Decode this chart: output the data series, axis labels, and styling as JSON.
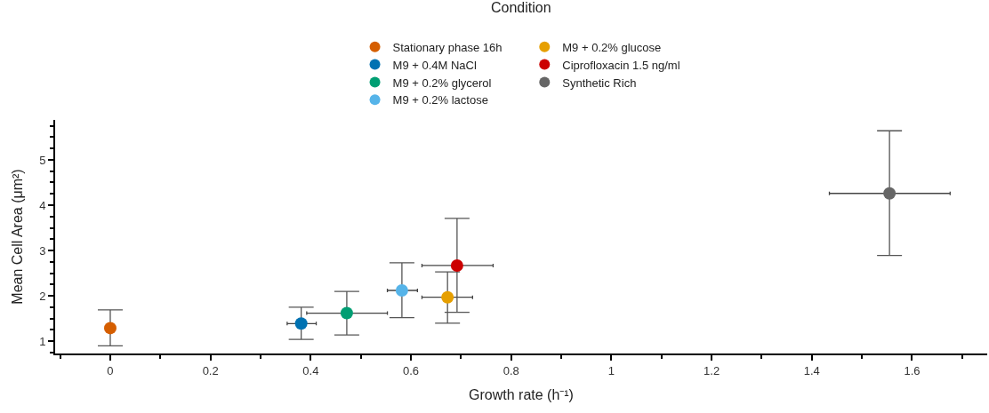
{
  "chart_data": {
    "type": "scatter",
    "xlabel": "Growth rate (h⁻¹)",
    "ylabel": "Mean Cell Area (μm²)",
    "legend_title": "Condition",
    "legend": "top",
    "marker": "circle",
    "xlim": [
      -0.11,
      1.75
    ],
    "ylim": [
      0.73,
      5.88
    ],
    "xticks": [
      {
        "value": -0.1,
        "label": null
      },
      0,
      {
        "value": 0.1,
        "label": null
      },
      0.2,
      {
        "value": 0.3,
        "label": null
      },
      0.4,
      {
        "value": 0.5,
        "label": null
      },
      0.6,
      {
        "value": 0.7,
        "label": null
      },
      0.8,
      {
        "value": 0.9,
        "label": null
      },
      1,
      {
        "value": 1.1,
        "label": null
      },
      1.2,
      {
        "value": 1.3,
        "label": null
      },
      1.4,
      {
        "value": 1.5,
        "label": null
      },
      1.6,
      {
        "value": 1.7,
        "label": null
      }
    ],
    "yticks": [
      {
        "value": 0.75,
        "label": null
      },
      1,
      {
        "value": 1.25,
        "label": null
      },
      {
        "value": 1.5,
        "label": null
      },
      {
        "value": 1.75,
        "label": null
      },
      2,
      {
        "value": 2.25,
        "label": null
      },
      {
        "value": 2.5,
        "label": null
      },
      {
        "value": 2.75,
        "label": null
      },
      3,
      {
        "value": 3.25,
        "label": null
      },
      {
        "value": 3.5,
        "label": null
      },
      {
        "value": 3.75,
        "label": null
      },
      4,
      {
        "value": 4.25,
        "label": null
      },
      {
        "value": 4.5,
        "label": null
      },
      {
        "value": 4.75,
        "label": null
      },
      5,
      {
        "value": 5.25,
        "label": null
      },
      {
        "value": 5.5,
        "label": null
      },
      {
        "value": 5.75,
        "label": null
      }
    ],
    "series": [
      {
        "name": "Stationary phase 16h",
        "color": "#d55e00",
        "x": [
          0
        ],
        "values": [
          1.29
        ],
        "errors": [
          [
            0.9,
            1.69
          ]
        ]
      },
      {
        "name": "M9 + 0.4M NaCl",
        "color": "#0072b2",
        "x": [
          0.381
        ],
        "values": [
          1.39
        ],
        "errors": [
          [
            1.04,
            1.75
          ]
        ],
        "xerrors": [
          [
            0.353,
            0.411
          ]
        ]
      },
      {
        "name": "M9 + 0.2% glycerol",
        "color": "#009e73",
        "x": [
          0.472
        ],
        "values": [
          1.62
        ],
        "errors": [
          [
            1.14,
            2.1
          ]
        ],
        "xerrors": [
          [
            0.392,
            0.553
          ]
        ]
      },
      {
        "name": "M9 + 0.2% lactose",
        "color": "#56b4e9",
        "x": [
          0.582
        ],
        "values": [
          2.12
        ],
        "errors": [
          [
            1.52,
            2.73
          ]
        ],
        "xerrors": [
          [
            0.553,
            0.613
          ]
        ]
      },
      {
        "name": "M9 + 0.2% glucose",
        "color": "#e69f00",
        "x": [
          0.673
        ],
        "values": [
          1.97
        ],
        "errors": [
          [
            1.4,
            2.53
          ]
        ],
        "xerrors": [
          [
            0.622,
            0.723
          ]
        ]
      },
      {
        "name": "Ciprofloxacin 1.5 ng/ml",
        "color": "#cc0000",
        "x": [
          0.692
        ],
        "values": [
          2.67
        ],
        "errors": [
          [
            1.64,
            3.71
          ]
        ],
        "xerrors": [
          [
            0.622,
            0.764
          ]
        ]
      },
      {
        "name": "Synthetic Rich",
        "color": "#666666",
        "x": [
          1.555
        ],
        "values": [
          4.26
        ],
        "errors": [
          [
            2.89,
            5.64
          ]
        ],
        "xerrors": [
          [
            1.435,
            1.676
          ]
        ]
      }
    ]
  }
}
